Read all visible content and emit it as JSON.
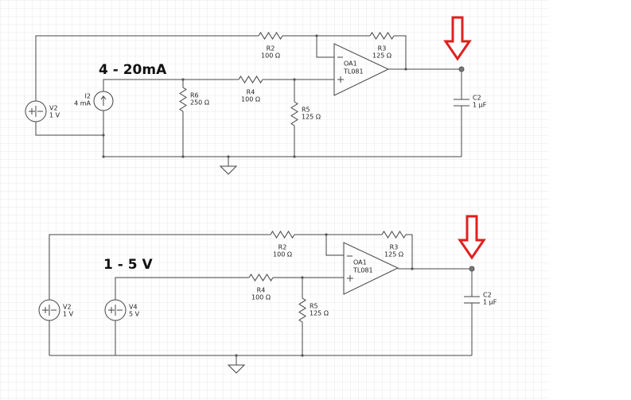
{
  "circuits": [
    {
      "title": "4 - 20mA",
      "opamp": {
        "name": "OA1",
        "model": "TL081"
      },
      "components": [
        {
          "name": "R2",
          "value": "100 Ω"
        },
        {
          "name": "R3",
          "value": "125 Ω"
        },
        {
          "name": "I2",
          "value": "4 mA"
        },
        {
          "name": "V2",
          "value": "1 V"
        },
        {
          "name": "R6",
          "value": "250 Ω"
        },
        {
          "name": "R4",
          "value": "100 Ω"
        },
        {
          "name": "R5",
          "value": "125 Ω"
        },
        {
          "name": "C2",
          "value": "1 µF"
        }
      ]
    },
    {
      "title": "1 - 5 V",
      "opamp": {
        "name": "OA1",
        "model": "TL081"
      },
      "components": [
        {
          "name": "R2",
          "value": "100 Ω"
        },
        {
          "name": "R3",
          "value": "125 Ω"
        },
        {
          "name": "V2",
          "value": "1 V"
        },
        {
          "name": "V4",
          "value": "5 V"
        },
        {
          "name": "R4",
          "value": "100 Ω"
        },
        {
          "name": "R5",
          "value": "125 Ω"
        },
        {
          "name": "C2",
          "value": "1 µF"
        }
      ]
    }
  ]
}
